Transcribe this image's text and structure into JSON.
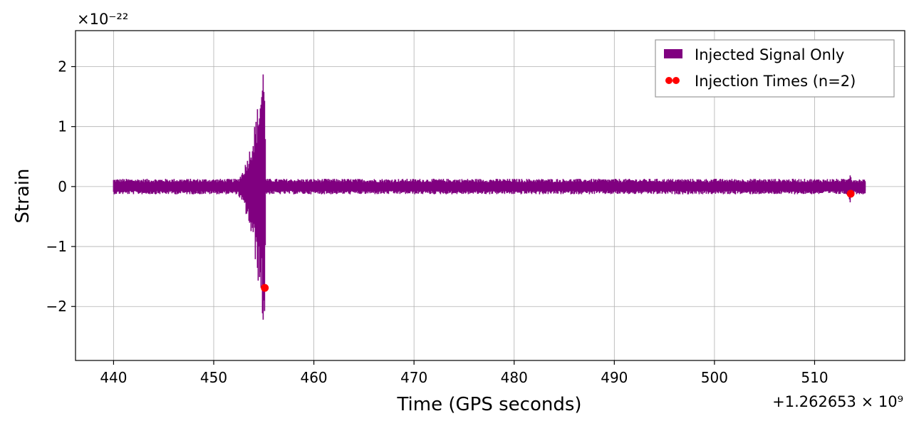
{
  "chart_data": {
    "type": "line",
    "title": "",
    "xlabel": "Time (GPS seconds)",
    "ylabel": "Strain",
    "x_offset_label": "+1.262653 × 10⁹",
    "y_scale_label": "×10⁻²²",
    "xlim": [
      436.2,
      519.0
    ],
    "ylim": [
      -2.9,
      2.6
    ],
    "x_ticks": [
      440,
      450,
      460,
      470,
      480,
      490,
      500,
      510
    ],
    "x_tick_labels": [
      "440",
      "450",
      "460",
      "470",
      "480",
      "490",
      "500",
      "510"
    ],
    "y_ticks": [
      -2,
      -1,
      0,
      1,
      2
    ],
    "y_tick_labels": [
      "−2",
      "−1",
      "0",
      "1",
      "2"
    ],
    "grid": true,
    "legend_position": "top-right",
    "series": [
      {
        "name": "Injected Signal Only",
        "color": "#800080",
        "style": "noise-band",
        "x_range": [
          440.0,
          515.1
        ],
        "background_amplitude": 0.13,
        "bursts": [
          {
            "t_start": 450.6,
            "t_peak": 455.1,
            "t_end": 455.2,
            "max": 2.36,
            "min": -2.65
          },
          {
            "t_start": 512.0,
            "t_peak": 513.6,
            "t_end": 513.8,
            "max": 0.28,
            "min": -0.32
          }
        ]
      },
      {
        "name": "Injection Times (n=2)",
        "color": "#ff0000",
        "style": "markers",
        "x": [
          455.1,
          513.6
        ],
        "y": [
          -1.69,
          -0.12
        ]
      }
    ]
  }
}
